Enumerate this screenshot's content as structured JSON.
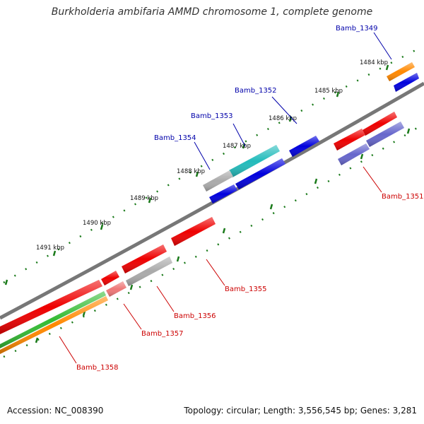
{
  "title": "Burkholderia ambifaria AMMD chromosome 1, complete genome",
  "footer": {
    "accession": "Accession: NC_008390",
    "summary": "Topology: circular; Length: 3,556,545 bp; Genes: 3,281"
  },
  "ticks": [
    "1484 kbp",
    "1485 kbp",
    "1486 kbp",
    "1487 kbp",
    "1488 kbp",
    "1489 kbp",
    "1490 kbp",
    "1491 kbp"
  ],
  "gene_labels": {
    "top": [
      "Bamb_1349",
      "Bamb_1352",
      "Bamb_1353",
      "Bamb_1354"
    ],
    "bottom": [
      "Bamb_1351",
      "Bamb_1355",
      "Bamb_1356",
      "Bamb_1357",
      "Bamb_1358"
    ]
  },
  "colors": {
    "top_label": "#0000aa",
    "bottom_label": "#cc0000",
    "backbone": "#777777",
    "tick": "#1a7a1a",
    "red": "#ee0000",
    "blue": "#0000dd",
    "cyan": "#22bbbb",
    "gray": "#aaaaaa",
    "orange": "#ff8800",
    "purple": "#6666cc",
    "green": "#33bb33",
    "pink": "#ee7777"
  }
}
